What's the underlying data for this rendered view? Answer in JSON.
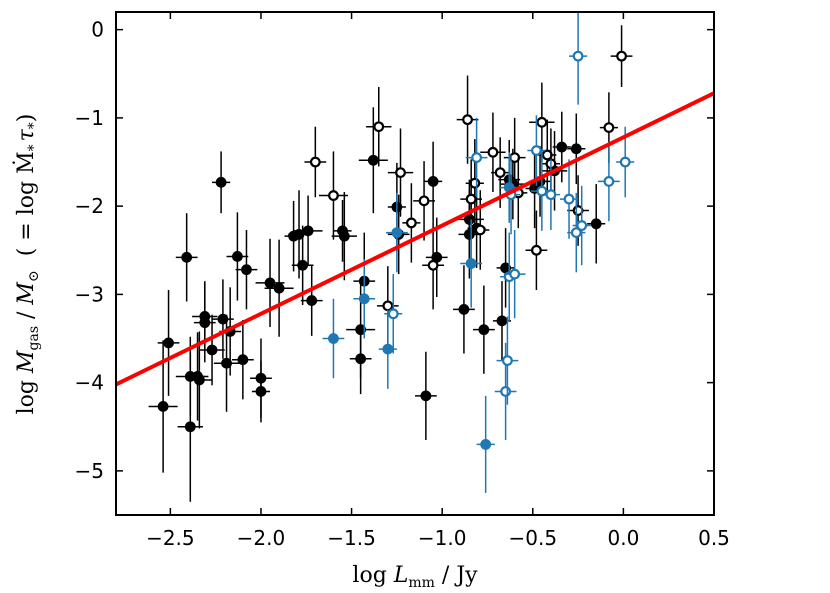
{
  "chart_data": {
    "type": "scatter",
    "xlabel": "log L_mm / Jy",
    "ylabel": "log M_gas / M_sun (= log Mdot_* tau_*)",
    "xlabel_parts": {
      "pre": "log ",
      "var": "L",
      "sub": "mm",
      "post": " / Jy"
    },
    "ylabel_parts": {
      "pre": "log ",
      "var": "M",
      "sub": "gas",
      "post": " / ",
      "var2": "M",
      "sub2": "⊙",
      "paren": "( = log Ṁ",
      "star": "*",
      "tau": "τ",
      "close": ")"
    },
    "xlim": [
      -2.8,
      0.5
    ],
    "ylim": [
      -5.5,
      0.2
    ],
    "xticks": [
      -2.5,
      -2.0,
      -1.5,
      -1.0,
      -0.5,
      0.0,
      0.5
    ],
    "xtick_labels": [
      "−2.5",
      "−2.0",
      "−1.5",
      "−1.0",
      "−0.5",
      "0.0",
      "0.5"
    ],
    "yticks": [
      0,
      -1,
      -2,
      -3,
      -4,
      -5
    ],
    "ytick_labels": [
      "0",
      "−1",
      "−2",
      "−3",
      "−4",
      "−5"
    ],
    "colors": {
      "black": "#000000",
      "blue": "#1f77b4",
      "fit": "#ff0000"
    },
    "fit_line": {
      "x": [
        -2.8,
        0.5
      ],
      "y": [
        -4.02,
        -0.72
      ]
    },
    "series": [
      {
        "name": "black-filled",
        "color": "#000000",
        "filled": true,
        "points": [
          [
            -2.51,
            -3.55,
            0.06,
            0.6
          ],
          [
            -2.54,
            -4.27,
            0.08,
            0.75
          ],
          [
            -2.41,
            -2.58,
            0.06,
            0.5
          ],
          [
            -2.39,
            -3.93,
            0.08,
            0.45
          ],
          [
            -2.39,
            -4.5,
            0.07,
            0.85
          ],
          [
            -2.35,
            -3.93,
            0.06,
            0.5
          ],
          [
            -2.34,
            -3.97,
            0.07,
            0.55
          ],
          [
            -2.31,
            -3.25,
            0.07,
            0.4
          ],
          [
            -2.31,
            -3.32,
            0.06,
            0.45
          ],
          [
            -2.27,
            -3.63,
            0.07,
            0.4
          ],
          [
            -2.22,
            -1.73,
            0.05,
            0.35
          ],
          [
            -2.21,
            -3.28,
            0.06,
            0.45
          ],
          [
            -2.19,
            -3.78,
            0.07,
            0.55
          ],
          [
            -2.17,
            -3.42,
            0.06,
            0.5
          ],
          [
            -2.13,
            -2.57,
            0.06,
            0.5
          ],
          [
            -2.1,
            -3.74,
            0.06,
            0.45
          ],
          [
            -2.08,
            -2.72,
            0.06,
            0.45
          ],
          [
            -2.0,
            -3.95,
            0.06,
            0.45
          ],
          [
            -2.0,
            -4.1,
            0.05,
            0.35
          ],
          [
            -1.95,
            -2.87,
            0.08,
            0.5
          ],
          [
            -1.9,
            -2.93,
            0.08,
            0.55
          ],
          [
            -1.82,
            -2.34,
            0.05,
            0.4
          ],
          [
            -1.79,
            -2.32,
            0.06,
            0.5
          ],
          [
            -1.77,
            -2.67,
            0.06,
            0.45
          ],
          [
            -1.74,
            -2.28,
            0.08,
            0.4
          ],
          [
            -1.72,
            -3.07,
            0.06,
            0.4
          ],
          [
            -1.55,
            -2.28,
            0.05,
            0.35
          ],
          [
            -1.54,
            -2.34,
            0.07,
            0.5
          ],
          [
            -1.45,
            -3.4,
            0.08,
            0.55
          ],
          [
            -1.45,
            -3.73,
            0.06,
            0.4
          ],
          [
            -1.43,
            -2.85,
            0.06,
            0.55
          ],
          [
            -1.38,
            -1.48,
            0.08,
            0.6
          ],
          [
            -1.25,
            -2.01,
            0.05,
            0.5
          ],
          [
            -1.24,
            -2.32,
            0.06,
            0.45
          ],
          [
            -1.09,
            -4.15,
            0.06,
            0.5
          ],
          [
            -1.05,
            -1.72,
            0.05,
            0.45
          ],
          [
            -1.03,
            -2.58,
            0.06,
            0.45
          ],
          [
            -0.88,
            -3.17,
            0.06,
            0.5
          ],
          [
            -0.85,
            -2.15,
            0.08,
            0.45
          ],
          [
            -0.85,
            -2.32,
            0.06,
            0.5
          ],
          [
            -0.81,
            -2.25,
            0.05,
            0.45
          ],
          [
            -0.77,
            -3.4,
            0.06,
            0.5
          ],
          [
            -0.67,
            -3.3,
            0.05,
            0.45
          ],
          [
            -0.65,
            -2.7,
            0.05,
            0.45
          ],
          [
            -0.63,
            -1.7,
            0.06,
            0.45
          ],
          [
            -0.61,
            -1.75,
            0.07,
            0.4
          ],
          [
            -0.49,
            -1.8,
            0.05,
            0.45
          ],
          [
            -0.46,
            -1.72,
            0.06,
            0.4
          ],
          [
            -0.38,
            -1.6,
            0.07,
            0.45
          ],
          [
            -0.34,
            -1.33,
            0.05,
            0.4
          ],
          [
            -0.26,
            -1.35,
            0.05,
            0.4
          ],
          [
            -0.15,
            -2.2,
            0.05,
            0.45
          ]
        ]
      },
      {
        "name": "black-open",
        "color": "#000000",
        "filled": false,
        "points": [
          [
            -1.7,
            -1.5,
            0.06,
            0.4
          ],
          [
            -1.6,
            -1.88,
            0.08,
            0.5
          ],
          [
            -1.35,
            -1.1,
            0.07,
            0.45
          ],
          [
            -1.3,
            -3.13,
            0.06,
            0.45
          ],
          [
            -1.23,
            -1.62,
            0.07,
            0.5
          ],
          [
            -1.17,
            -2.19,
            0.05,
            0.45
          ],
          [
            -1.1,
            -1.94,
            0.06,
            0.45
          ],
          [
            -1.05,
            -2.67,
            0.06,
            0.5
          ],
          [
            -0.86,
            -1.02,
            0.06,
            0.5
          ],
          [
            -0.82,
            -1.74,
            0.05,
            0.5
          ],
          [
            -0.84,
            -1.92,
            0.06,
            0.45
          ],
          [
            -0.79,
            -2.27,
            0.05,
            0.45
          ],
          [
            -0.72,
            -1.39,
            0.07,
            0.45
          ],
          [
            -0.68,
            -1.62,
            0.05,
            0.4
          ],
          [
            -0.6,
            -1.45,
            0.06,
            0.45
          ],
          [
            -0.58,
            -1.85,
            0.05,
            0.4
          ],
          [
            -0.48,
            -2.5,
            0.06,
            0.45
          ],
          [
            -0.45,
            -1.05,
            0.07,
            0.45
          ],
          [
            -0.42,
            -1.42,
            0.05,
            0.4
          ],
          [
            -0.4,
            -1.52,
            0.05,
            0.4
          ],
          [
            -0.25,
            -2.05,
            0.06,
            0.4
          ],
          [
            -0.08,
            -1.11,
            0.05,
            0.4
          ],
          [
            -0.01,
            -0.3,
            0.06,
            0.35
          ]
        ]
      },
      {
        "name": "blue-filled",
        "color": "#1f77b4",
        "filled": true,
        "points": [
          [
            -1.6,
            -3.5,
            0.06,
            0.45
          ],
          [
            -1.43,
            -3.05,
            0.06,
            0.45
          ],
          [
            -1.3,
            -3.62,
            0.05,
            0.45
          ],
          [
            -1.25,
            -2.3,
            0.06,
            0.45
          ],
          [
            -0.84,
            -2.65,
            0.06,
            0.5
          ],
          [
            -0.76,
            -4.7,
            0.05,
            0.55
          ],
          [
            -0.63,
            -1.79,
            0.05,
            0.4
          ]
        ]
      },
      {
        "name": "blue-open",
        "color": "#1f77b4",
        "filled": false,
        "points": [
          [
            -1.27,
            -3.22,
            0.05,
            0.45
          ],
          [
            -0.81,
            -1.45,
            0.06,
            0.45
          ],
          [
            -0.65,
            -4.1,
            0.06,
            0.55
          ],
          [
            -0.64,
            -3.75,
            0.06,
            0.5
          ],
          [
            -0.63,
            -2.8,
            0.05,
            0.5
          ],
          [
            -0.62,
            -1.87,
            0.05,
            0.45
          ],
          [
            -0.6,
            -2.77,
            0.06,
            0.5
          ],
          [
            -0.48,
            -1.37,
            0.05,
            0.4
          ],
          [
            -0.45,
            -1.83,
            0.06,
            0.45
          ],
          [
            -0.4,
            -1.87,
            0.05,
            0.4
          ],
          [
            -0.3,
            -1.92,
            0.05,
            0.45
          ],
          [
            -0.26,
            -2.3,
            0.05,
            0.45
          ],
          [
            -0.25,
            -0.3,
            0.05,
            0.55
          ],
          [
            -0.23,
            -2.22,
            0.05,
            0.45
          ],
          [
            -0.08,
            -1.72,
            0.06,
            0.45
          ],
          [
            0.01,
            -1.5,
            0.05,
            0.4
          ]
        ]
      }
    ]
  }
}
